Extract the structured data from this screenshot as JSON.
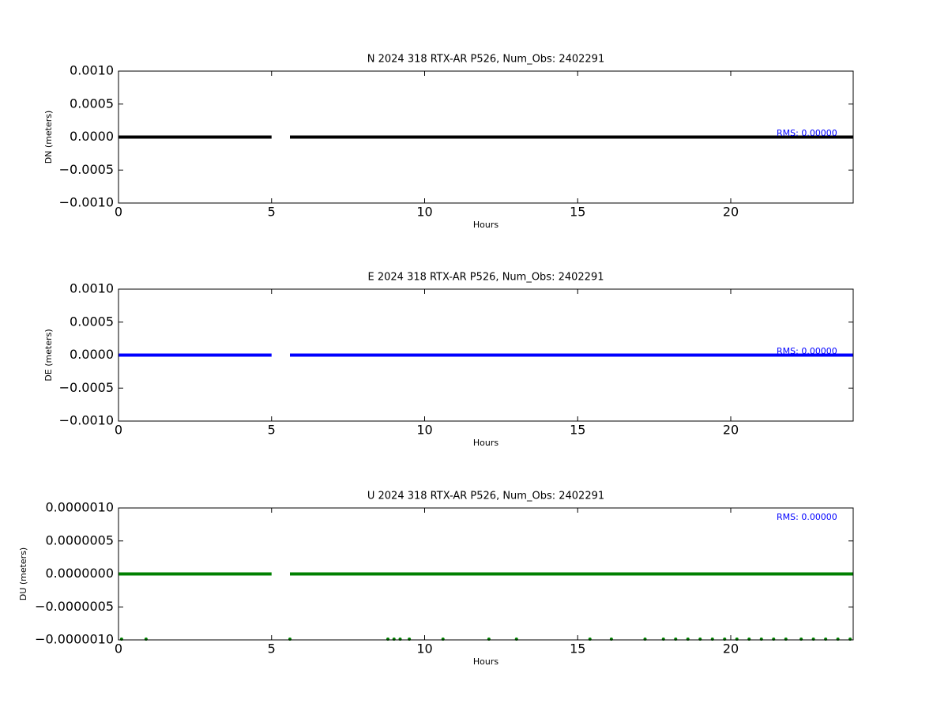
{
  "chart_data": [
    {
      "type": "line",
      "title": "N 2024 318 RTX-AR  P526, Num_Obs: 2402291",
      "ylabel": "DN (meters)",
      "xlabel": "Hours",
      "annotation": "RMS:  0.00000",
      "color": "#000000",
      "x": [
        0,
        5,
        5.3,
        5.6,
        24
      ],
      "values": [
        0,
        0,
        null,
        0,
        0
      ],
      "xlim": [
        0,
        24
      ],
      "xticks": [
        0,
        5,
        10,
        15,
        20
      ],
      "ylim": [
        -0.001,
        0.001
      ],
      "yticks": [
        {
          "value": -0.001,
          "label": "−0.0010"
        },
        {
          "value": -0.0005,
          "label": "−0.0005"
        },
        {
          "value": 0,
          "label": "0.0000"
        },
        {
          "value": 0.0005,
          "label": "0.0005"
        },
        {
          "value": 0.001,
          "label": "0.0010"
        }
      ]
    },
    {
      "type": "line",
      "title": "E 2024 318 RTX-AR  P526, Num_Obs: 2402291",
      "ylabel": "DE (meters)",
      "xlabel": "Hours",
      "annotation": "RMS:  0.00000",
      "color": "#0000ff",
      "x": [
        0,
        5,
        5.3,
        5.6,
        24
      ],
      "values": [
        0,
        0,
        null,
        0,
        0
      ],
      "xlim": [
        0,
        24
      ],
      "xticks": [
        0,
        5,
        10,
        15,
        20
      ],
      "ylim": [
        -0.001,
        0.001
      ],
      "yticks": [
        {
          "value": -0.001,
          "label": "−0.0010"
        },
        {
          "value": -0.0005,
          "label": "−0.0005"
        },
        {
          "value": 0,
          "label": "0.0000"
        },
        {
          "value": 0.0005,
          "label": "0.0005"
        },
        {
          "value": 0.001,
          "label": "0.0010"
        }
      ]
    },
    {
      "type": "line",
      "title": "U 2024 318 RTX-AR  P526, Num_Obs: 2402291",
      "ylabel": "DU (meters)",
      "xlabel": "Hours",
      "annotation": "RMS:  0.00000",
      "color": "#008000",
      "x": [
        0,
        5,
        5.3,
        5.6,
        24
      ],
      "values": [
        0,
        0,
        null,
        0,
        0
      ],
      "scatter": {
        "x": [
          0.1,
          0.9,
          5.6,
          8.8,
          9.0,
          9.2,
          9.5,
          10.6,
          12.1,
          13.0,
          15.4,
          16.1,
          17.2,
          17.8,
          18.2,
          18.6,
          19.0,
          19.4,
          19.8,
          20.2,
          20.6,
          21.0,
          21.4,
          21.8,
          22.3,
          22.7,
          23.1,
          23.5,
          23.9
        ],
        "values": [
          -1e-06,
          -1e-06,
          -1e-06,
          -1e-06,
          -1e-06,
          -1e-06,
          -1e-06,
          -1e-06,
          -1e-06,
          -1e-06,
          -1e-06,
          -1e-06,
          -1e-06,
          -1e-06,
          -1e-06,
          -1e-06,
          -1e-06,
          -1e-06,
          -1e-06,
          -1e-06,
          -1e-06,
          -1e-06,
          -1e-06,
          -1e-06,
          -1e-06,
          -1e-06,
          -1e-06,
          -1e-06,
          -1e-06
        ]
      },
      "xlim": [
        0,
        24
      ],
      "xticks": [
        0,
        5,
        10,
        15,
        20
      ],
      "ylim": [
        -1e-06,
        1e-06
      ],
      "yticks": [
        {
          "value": -1e-06,
          "label": "−0.0000010"
        },
        {
          "value": -5e-07,
          "label": "−0.0000005"
        },
        {
          "value": 0,
          "label": "0.0000000"
        },
        {
          "value": 5e-07,
          "label": "0.0000005"
        },
        {
          "value": 1e-06,
          "label": "0.0000010"
        }
      ]
    }
  ]
}
